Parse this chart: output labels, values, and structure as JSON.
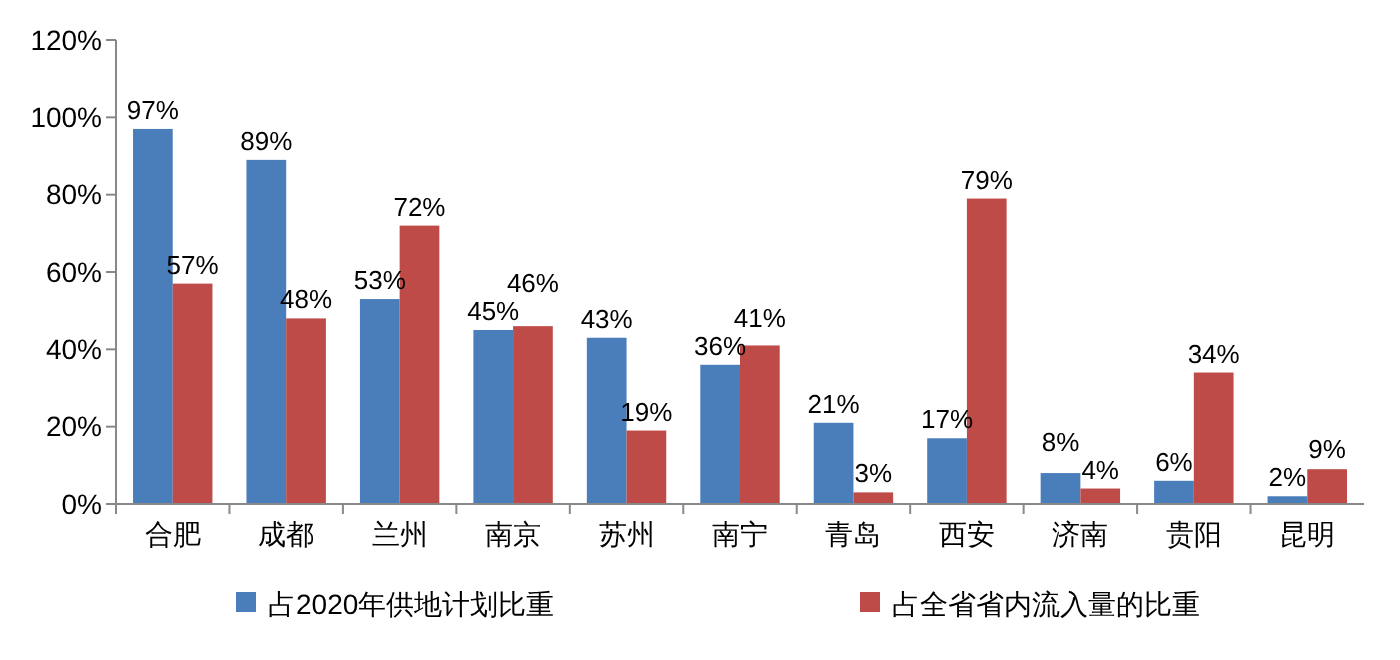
{
  "chart_data": {
    "type": "bar",
    "categories": [
      "合肥",
      "成都",
      "兰州",
      "南京",
      "苏州",
      "南宁",
      "青岛",
      "西安",
      "济南",
      "贵阳",
      "昆明"
    ],
    "series": [
      {
        "name": "占2020年供地计划比重",
        "color": "#4a7ebb",
        "values": [
          97,
          89,
          53,
          45,
          43,
          36,
          21,
          17,
          8,
          6,
          2
        ],
        "value_labels": [
          "97%",
          "89%",
          "53%",
          "45%",
          "43%",
          "36%",
          "21%",
          "17%",
          "8%",
          "6%",
          "2%"
        ]
      },
      {
        "name": "占全省省内流入量的比重",
        "color": "#be4b48",
        "values": [
          57,
          48,
          72,
          46,
          19,
          41,
          3,
          79,
          4,
          34,
          9
        ],
        "value_labels": [
          "57%",
          "48%",
          "72%",
          "46%",
          "19%",
          "41%",
          "3%",
          "79%",
          "4%",
          "34%",
          "9%"
        ]
      }
    ],
    "ylim": [
      0,
      120
    ],
    "yticks": [
      {
        "value": 0,
        "label": "0%"
      },
      {
        "value": 20,
        "label": "20%"
      },
      {
        "value": 40,
        "label": "40%"
      },
      {
        "value": 60,
        "label": "60%"
      },
      {
        "value": 80,
        "label": "80%"
      },
      {
        "value": 100,
        "label": "100%"
      },
      {
        "value": 120,
        "label": "120%"
      }
    ],
    "grid": false,
    "legend": "bottom"
  }
}
